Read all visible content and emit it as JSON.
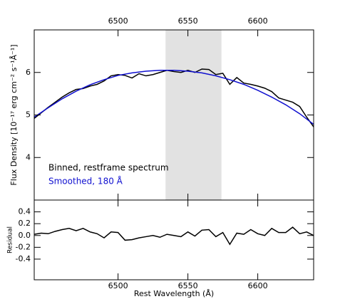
{
  "chart_data": [
    {
      "type": "line",
      "ylabel": "Flux Density  [10⁻¹⁷ erg cm⁻² s⁻¹Å⁻¹]",
      "x": [
        6440,
        6445,
        6450,
        6455,
        6460,
        6465,
        6470,
        6475,
        6480,
        6485,
        6490,
        6495,
        6500,
        6505,
        6510,
        6515,
        6520,
        6525,
        6530,
        6535,
        6540,
        6545,
        6550,
        6555,
        6560,
        6565,
        6570,
        6575,
        6580,
        6585,
        6590,
        6595,
        6600,
        6605,
        6610,
        6615,
        6620,
        6625,
        6630,
        6635,
        6640
      ],
      "series": [
        {
          "name": "Binned, restframe spectrum",
          "color": "#000000",
          "values": [
            4.92,
            5.05,
            5.18,
            5.3,
            5.42,
            5.52,
            5.6,
            5.62,
            5.68,
            5.72,
            5.8,
            5.92,
            5.95,
            5.93,
            5.87,
            5.97,
            5.92,
            5.95,
            6.0,
            6.05,
            6.02,
            6.0,
            6.05,
            6.0,
            6.08,
            6.07,
            5.95,
            5.98,
            5.72,
            5.88,
            5.75,
            5.72,
            5.68,
            5.63,
            5.55,
            5.4,
            5.35,
            5.3,
            5.2,
            4.95,
            4.72
          ]
        },
        {
          "name": "Smoothed, 180 Å",
          "color": "#1010d0",
          "x": [
            6440,
            6450,
            6460,
            6470,
            6480,
            6490,
            6500,
            6510,
            6520,
            6530,
            6540,
            6550,
            6560,
            6570,
            6580,
            6590,
            6600,
            6610,
            6620,
            6630,
            6640
          ],
          "values": [
            4.95,
            5.17,
            5.38,
            5.56,
            5.71,
            5.83,
            5.93,
            5.99,
            6.03,
            6.05,
            6.05,
            6.03,
            5.99,
            5.92,
            5.83,
            5.72,
            5.58,
            5.42,
            5.24,
            5.03,
            4.78
          ]
        }
      ],
      "shade": [
        6534,
        6574
      ],
      "shade_color": "#e2e2e2",
      "xlim": [
        6440,
        6640
      ],
      "xticks": [
        6500,
        6550,
        6600
      ],
      "xtick_position": "top",
      "ylim": [
        3,
        7
      ],
      "yticks": [
        4,
        5,
        6
      ]
    },
    {
      "type": "line",
      "xlabel": "Rest Wavelength (Å)",
      "ylabel": "Residual",
      "x": [
        6440,
        6445,
        6450,
        6455,
        6460,
        6465,
        6470,
        6475,
        6480,
        6485,
        6490,
        6495,
        6500,
        6505,
        6510,
        6515,
        6520,
        6525,
        6530,
        6535,
        6540,
        6545,
        6550,
        6555,
        6560,
        6565,
        6570,
        6575,
        6580,
        6585,
        6590,
        6595,
        6600,
        6605,
        6610,
        6615,
        6620,
        6625,
        6630,
        6635,
        6640
      ],
      "series": [
        {
          "color": "#000000",
          "values": [
            0.02,
            0.04,
            0.03,
            0.07,
            0.1,
            0.12,
            0.08,
            0.12,
            0.06,
            0.03,
            -0.04,
            0.06,
            0.05,
            -0.08,
            -0.07,
            -0.04,
            -0.02,
            0.0,
            -0.03,
            0.02,
            0.0,
            -0.02,
            0.06,
            -0.01,
            0.09,
            0.1,
            -0.02,
            0.05,
            -0.15,
            0.04,
            0.02,
            0.1,
            0.03,
            0.0,
            0.12,
            0.05,
            0.05,
            0.14,
            0.03,
            0.06,
            0.0
          ]
        }
      ],
      "xlim": [
        6440,
        6640
      ],
      "xticks": [
        6500,
        6550,
        6600
      ],
      "xtick_position": "bottom",
      "ylim": [
        -0.75,
        0.6
      ],
      "yticks": [
        0.4,
        0.2,
        {
          "value": 0,
          "label": "0.0"
        },
        -0.2,
        -0.4
      ]
    }
  ]
}
